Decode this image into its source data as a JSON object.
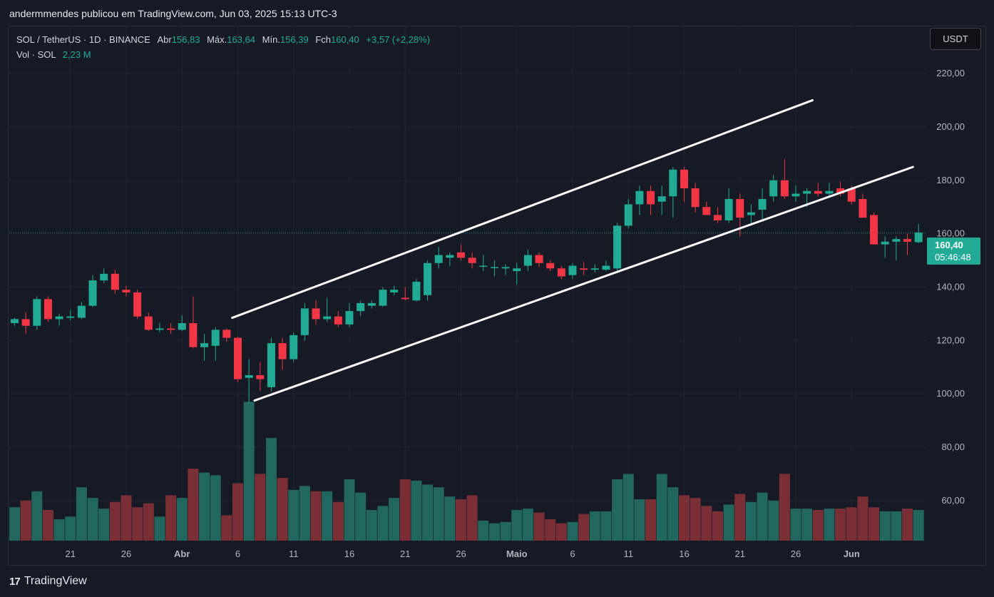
{
  "header": {
    "author_line": "andermmendes publicou em TradingView.com, Jun 03, 2025 15:13 UTC-3"
  },
  "legend": {
    "symbol": "SOL / TetherUS · 1D · BINANCE",
    "open_label": "Abr",
    "open": "156,83",
    "high_label": "Máx.",
    "high": "163,64",
    "low_label": "Mín.",
    "low": "156,39",
    "close_label": "Fch",
    "close": "160,40",
    "change": "+3,57 (+2,28%)",
    "vol_label": "Vol · SOL",
    "vol": "2,23 M"
  },
  "currency_button": "USDT",
  "last_price": {
    "price": "160,40",
    "countdown": "05:46:48"
  },
  "brand": {
    "logo": "17",
    "name": "TradingView"
  },
  "colors": {
    "up": "#22ab94",
    "down": "#f23645",
    "vol_up": "#22675e",
    "vol_down": "#7a2f36",
    "background": "#161a25",
    "grid": "#232632"
  },
  "chart_data": {
    "type": "candlestick",
    "symbol": "SOL / TetherUS",
    "interval": "1D",
    "exchange": "BINANCE",
    "ylim": [
      45,
      235
    ],
    "y_ticks": [
      "60,00",
      "80,00",
      "100,00",
      "120,00",
      "140,00",
      "160,00",
      "180,00",
      "200,00",
      "220,00"
    ],
    "y_tick_values": [
      60,
      80,
      100,
      120,
      140,
      160,
      180,
      200,
      220
    ],
    "x_ticks": [
      "21",
      "26",
      "Abr",
      "6",
      "11",
      "16",
      "21",
      "26",
      "Maio",
      "6",
      "11",
      "16",
      "21",
      "26",
      "Jun"
    ],
    "x_tick_index": [
      5,
      10,
      15,
      20,
      25,
      30,
      35,
      40,
      45,
      50,
      55,
      60,
      65,
      70,
      75
    ],
    "start_index": 0,
    "candles": [
      [
        126.5,
        128.5,
        125.5,
        128.0,
        57.5
      ],
      [
        128.0,
        130.5,
        122.5,
        125.5,
        60.0
      ],
      [
        125.5,
        136.5,
        124.0,
        135.5,
        63.5
      ],
      [
        135.5,
        136.5,
        127.0,
        128.0,
        56.5
      ],
      [
        128.0,
        130.0,
        125.5,
        129.0,
        53.0
      ],
      [
        128.5,
        131.5,
        127.5,
        129.0,
        54.0
      ],
      [
        128.5,
        134.5,
        128.0,
        133.0,
        65.0
      ],
      [
        133.0,
        144.5,
        132.5,
        142.5,
        61.0
      ],
      [
        142.5,
        147.0,
        141.5,
        145.0,
        57.0
      ],
      [
        145.0,
        146.5,
        137.5,
        139.0,
        59.5
      ],
      [
        139.0,
        140.5,
        136.5,
        138.0,
        62.0
      ],
      [
        138.0,
        139.0,
        128.0,
        129.0,
        57.5
      ],
      [
        129.0,
        130.5,
        123.5,
        124.0,
        59.0
      ],
      [
        124.0,
        126.5,
        123.0,
        124.5,
        54.0
      ],
      [
        124.5,
        126.5,
        122.5,
        124.0,
        62.0
      ],
      [
        124.0,
        129.5,
        123.5,
        126.5,
        61.0
      ],
      [
        126.5,
        136.5,
        117.0,
        117.5,
        72.0
      ],
      [
        117.5,
        122.5,
        112.5,
        119.0,
        70.5
      ],
      [
        118.0,
        125.0,
        112.5,
        124.0,
        69.5
      ],
      [
        124.0,
        124.5,
        119.5,
        121.0,
        54.5
      ],
      [
        121.0,
        121.5,
        104.5,
        105.5,
        66.5
      ],
      [
        106.0,
        113.0,
        96.5,
        107.0,
        97.0
      ],
      [
        107.0,
        112.0,
        101.0,
        105.5,
        70.0
      ],
      [
        102.5,
        121.0,
        101.0,
        119.0,
        83.5
      ],
      [
        119.0,
        121.0,
        109.0,
        113.0,
        68.5
      ],
      [
        113.0,
        123.0,
        112.0,
        122.0,
        64.0
      ],
      [
        122.0,
        134.0,
        120.0,
        132.0,
        65.5
      ],
      [
        132.0,
        135.0,
        126.0,
        128.0,
        63.5
      ],
      [
        128.0,
        136.0,
        127.0,
        129.0,
        63.5
      ],
      [
        129.0,
        131.0,
        125.0,
        126.0,
        59.5
      ],
      [
        126.0,
        134.0,
        125.0,
        131.0,
        68.0
      ],
      [
        131.0,
        135.0,
        129.0,
        134.0,
        63.0
      ],
      [
        133.0,
        135.0,
        132.0,
        134.0,
        56.5
      ],
      [
        133.0,
        140.0,
        132.5,
        139.0,
        58.0
      ],
      [
        138.0,
        140.5,
        137.0,
        139.0,
        61.0
      ],
      [
        136.0,
        140.0,
        135.0,
        135.5,
        68.0
      ],
      [
        135.0,
        143.0,
        134.5,
        142.0,
        67.5
      ],
      [
        137.0,
        150.0,
        135.0,
        149.0,
        66.0
      ],
      [
        149.0,
        155.0,
        147.0,
        152.0,
        65.0
      ],
      [
        151.0,
        153.0,
        148.0,
        152.0,
        61.5
      ],
      [
        153.0,
        156.0,
        150.0,
        151.0,
        60.5
      ],
      [
        151.0,
        153.0,
        147.0,
        149.0,
        62.0
      ],
      [
        148.0,
        152.0,
        146.0,
        148.0,
        52.5
      ],
      [
        147.5,
        150.0,
        144.0,
        147.5,
        51.5
      ],
      [
        147.0,
        148.5,
        144.5,
        147.5,
        52.0
      ],
      [
        146.0,
        149.0,
        141.0,
        147.0,
        56.5
      ],
      [
        148.0,
        154.0,
        146.0,
        152.0,
        57.0
      ],
      [
        152.0,
        153.0,
        147.5,
        149.0,
        55.5
      ],
      [
        149.0,
        150.0,
        146.0,
        147.0,
        53.0
      ],
      [
        147.0,
        148.0,
        143.0,
        144.0,
        51.5
      ],
      [
        144.5,
        149.0,
        143.0,
        148.0,
        52.0
      ],
      [
        147.0,
        149.5,
        144.5,
        146.5,
        55.0
      ],
      [
        146.5,
        148.5,
        145.5,
        147.0,
        56.0
      ],
      [
        146.5,
        150.0,
        146.0,
        148.0,
        56.0
      ],
      [
        147.0,
        164.0,
        146.0,
        163.0,
        68.0
      ],
      [
        163.0,
        173.0,
        162.0,
        171.0,
        70.0
      ],
      [
        171.0,
        178.0,
        167.0,
        176.0,
        60.5
      ],
      [
        176.0,
        178.0,
        167.0,
        171.0,
        60.5
      ],
      [
        172.0,
        178.0,
        167.0,
        174.0,
        70.0
      ],
      [
        174.0,
        185.0,
        166.0,
        184.0,
        65.0
      ],
      [
        184.0,
        185.0,
        172.0,
        177.0,
        62.0
      ],
      [
        177.0,
        179.0,
        168.0,
        170.0,
        61.0
      ],
      [
        170.0,
        172.0,
        167.0,
        167.0,
        58.0
      ],
      [
        167.0,
        170.0,
        164.0,
        165.0,
        56.0
      ],
      [
        165.0,
        177.0,
        164.0,
        173.0,
        58.5
      ],
      [
        173.0,
        175.0,
        159.0,
        166.0,
        62.5
      ],
      [
        167.0,
        171.0,
        163.0,
        168.0,
        59.5
      ],
      [
        169.0,
        177.0,
        165.0,
        173.0,
        63.0
      ],
      [
        174.0,
        182.0,
        172.0,
        180.0,
        60.0
      ],
      [
        180.0,
        188.0,
        173.0,
        174.0,
        70.0
      ],
      [
        174.0,
        178.0,
        172.0,
        175.0,
        57.0
      ],
      [
        175.0,
        177.0,
        170.0,
        176.0,
        57.0
      ],
      [
        176.0,
        179.0,
        174.0,
        175.0,
        56.5
      ],
      [
        175.0,
        179.0,
        174.0,
        176.0,
        57.0
      ],
      [
        177.0,
        179.5,
        174.0,
        175.0,
        57.0
      ],
      [
        177.0,
        178.0,
        171.0,
        172.0,
        57.5
      ],
      [
        173.0,
        175.0,
        166.0,
        166.0,
        61.5
      ],
      [
        167.0,
        168.0,
        156.0,
        156.0,
        57.5
      ],
      [
        156.0,
        159.0,
        151.0,
        157.0,
        56.0
      ],
      [
        157.0,
        159.0,
        150.0,
        158.0,
        56.0
      ],
      [
        158.0,
        160.0,
        152.0,
        157.0,
        57.0
      ],
      [
        156.83,
        163.64,
        156.39,
        160.4,
        56.5
      ]
    ],
    "volume_series": "shares price scale in this screenshot (bars at bottom)",
    "last_price": 160.4,
    "trend_lines": [
      {
        "x1_index": 19.5,
        "y1": 128.5,
        "x2_index": 71.5,
        "y2": 210.0
      },
      {
        "x1_index": 21.5,
        "y1": 97.5,
        "x2_index": 80.5,
        "y2": 185.0
      }
    ]
  }
}
